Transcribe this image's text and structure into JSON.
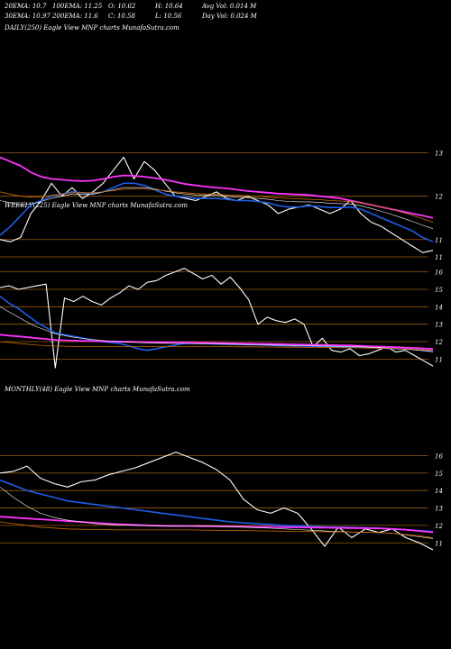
{
  "header": {
    "row1": [
      "20EMA: 10.7",
      "100EMA: 11.25",
      "O: 10.62",
      "H: 10.64",
      "Avg Vol: 0.014  M"
    ],
    "row2": [
      "30EMA: 10.97",
      "200EMA: 11.6",
      "C: 10.58",
      "L: 10.56",
      "Day Vol: 0.024  M"
    ]
  },
  "colors": {
    "background": "#000000",
    "price": "#ffffff",
    "ema20": "#1e5ee6",
    "ema_fast": "#ff33ff",
    "ema_mid": "#ffffff",
    "ema_orange": "#cc6a00",
    "gridline": "#9a5a12"
  },
  "panels": [
    {
      "label": "DAILY(250) Eagle  View  MNP charts MunafaSutra.com",
      "right_ticks": [],
      "chart_data": null
    },
    {
      "label": "WEEKLY(225) Eagle  View  MNP charts MunafaSutra.com",
      "chart_data": {
        "type": "line",
        "ylim": [
          10.6,
          13.2
        ],
        "right_ticks": [
          "13",
          "12",
          "11",
          "11"
        ],
        "tick_values": [
          13,
          12,
          11,
          10.6
        ],
        "series": [
          {
            "key": "price",
            "values": [
              11.0,
              10.95,
              11.05,
              11.6,
              11.9,
              12.3,
              12.0,
              12.2,
              11.95,
              12.1,
              12.3,
              12.6,
              12.9,
              12.4,
              12.8,
              12.6,
              12.3,
              12.0,
              11.95,
              11.9,
              12.0,
              12.1,
              11.95,
              11.9,
              12.0,
              11.9,
              11.8,
              11.6,
              11.7,
              11.75,
              11.8,
              11.7,
              11.6,
              11.7,
              11.9,
              11.6,
              11.4,
              11.3,
              11.15,
              11.0,
              10.85,
              10.7,
              10.75
            ]
          },
          {
            "key": "ema_fast",
            "values": [
              12.9,
              12.8,
              12.7,
              12.55,
              12.45,
              12.4,
              12.38,
              12.36,
              12.35,
              12.36,
              12.4,
              12.45,
              12.48,
              12.47,
              12.45,
              12.42,
              12.38,
              12.33,
              12.28,
              12.25,
              12.22,
              12.2,
              12.18,
              12.15,
              12.12,
              12.1,
              12.08,
              12.06,
              12.05,
              12.04,
              12.03,
              12.0,
              11.98,
              11.95,
              11.9,
              11.85,
              11.8,
              11.75,
              11.7,
              11.65,
              11.6,
              11.55,
              11.5
            ]
          },
          {
            "key": "ema20",
            "values": [
              11.1,
              11.3,
              11.55,
              11.8,
              11.9,
              12.0,
              12.05,
              12.1,
              12.08,
              12.05,
              12.1,
              12.2,
              12.3,
              12.3,
              12.25,
              12.15,
              12.05,
              12.0,
              11.98,
              11.95,
              11.95,
              11.95,
              11.93,
              11.9,
              11.9,
              11.88,
              11.85,
              11.78,
              11.75,
              11.75,
              11.78,
              11.76,
              11.74,
              11.74,
              11.75,
              11.7,
              11.6,
              11.5,
              11.4,
              11.3,
              11.2,
              11.05,
              10.95
            ]
          },
          {
            "key": "ema_mid",
            "values": [
              11.9,
              11.85,
              11.8,
              11.82,
              11.88,
              11.95,
              12.0,
              12.05,
              12.05,
              12.05,
              12.1,
              12.15,
              12.2,
              12.2,
              12.2,
              12.17,
              12.12,
              12.08,
              12.05,
              12.03,
              12.02,
              12.02,
              12.0,
              11.98,
              11.97,
              11.95,
              11.93,
              11.9,
              11.88,
              11.87,
              11.87,
              11.86,
              11.84,
              11.83,
              11.82,
              11.78,
              11.72,
              11.65,
              11.58,
              11.5,
              11.42,
              11.33,
              11.25
            ]
          },
          {
            "key": "ema_orange",
            "values": [
              12.1,
              12.05,
              12.0,
              11.98,
              11.99,
              12.02,
              12.05,
              12.08,
              12.08,
              12.08,
              12.1,
              12.13,
              12.16,
              12.17,
              12.17,
              12.15,
              12.13,
              12.1,
              12.08,
              12.06,
              12.05,
              12.05,
              12.03,
              12.02,
              12.01,
              12.0,
              11.98,
              11.96,
              11.95,
              11.94,
              11.93,
              11.92,
              11.9,
              11.89,
              11.88,
              11.85,
              11.8,
              11.75,
              11.7,
              11.63,
              11.56,
              11.48,
              11.4
            ]
          }
        ]
      }
    },
    {
      "label": "MONTHLY(48) Eagle  View  MNP charts MunafaSutra.com",
      "chart_data": {
        "type": "line",
        "ylim": [
          10.6,
          16.8
        ],
        "right_ticks": [
          "16",
          "15",
          "14",
          "13",
          "12",
          "11"
        ],
        "tick_values": [
          16,
          15,
          14,
          13,
          12,
          11
        ],
        "series": [
          {
            "key": "price",
            "values": [
              15.0,
              15.1,
              15.4,
              14.7,
              14.4,
              14.2,
              14.5,
              14.6,
              14.9,
              15.1,
              15.3,
              15.6,
              15.9,
              16.2,
              15.9,
              15.6,
              15.2,
              14.6,
              13.5,
              12.9,
              12.7,
              13.0,
              12.7,
              11.8,
              10.8,
              11.9,
              11.3,
              11.8,
              11.6,
              11.8,
              11.3,
              11.0,
              10.6
            ]
          },
          {
            "key": "ema20",
            "values": [
              14.6,
              14.3,
              14.0,
              13.8,
              13.6,
              13.4,
              13.3,
              13.2,
              13.1,
              13.0,
              12.9,
              12.8,
              12.7,
              12.6,
              12.5,
              12.4,
              12.3,
              12.2,
              12.15,
              12.1,
              12.05,
              12.0,
              11.98,
              11.95,
              11.92,
              11.9,
              11.88,
              11.86,
              11.84,
              11.8,
              11.75,
              11.7,
              11.65
            ]
          },
          {
            "key": "ema_fast",
            "values": [
              12.5,
              12.45,
              12.4,
              12.35,
              12.3,
              12.25,
              12.2,
              12.15,
              12.1,
              12.06,
              12.03,
              12.0,
              11.98,
              11.97,
              11.97,
              11.96,
              11.95,
              11.94,
              11.93,
              11.92,
              11.91,
              11.9,
              11.89,
              11.88,
              11.87,
              11.86,
              11.85,
              11.84,
              11.83,
              11.8,
              11.75,
              11.68,
              11.6
            ]
          },
          {
            "key": "ema_mid",
            "values": [
              14.2,
              13.6,
              13.1,
              12.7,
              12.45,
              12.3,
              12.2,
              12.1,
              12.05,
              12.02,
              12.0,
              11.99,
              11.98,
              11.98,
              11.97,
              11.96,
              11.95,
              11.93,
              11.9,
              11.87,
              11.84,
              11.8,
              11.76,
              11.72,
              11.68,
              11.65,
              11.62,
              11.6,
              11.58,
              11.55,
              11.45,
              11.35,
              11.25
            ]
          },
          {
            "key": "ema_orange",
            "values": [
              12.2,
              12.1,
              12.0,
              11.9,
              11.85,
              11.8,
              11.78,
              11.76,
              11.75,
              11.74,
              11.74,
              11.74,
              11.74,
              11.74,
              11.74,
              11.73,
              11.72,
              11.71,
              11.7,
              11.69,
              11.68,
              11.67,
              11.66,
              11.65,
              11.64,
              11.63,
              11.62,
              11.61,
              11.6,
              11.55,
              11.48,
              11.4,
              11.3
            ]
          }
        ]
      }
    }
  ],
  "daily_chart_data": {
    "type": "line",
    "ylim": [
      10.4,
      16.6
    ],
    "right_ticks": [
      "16",
      "15",
      "14",
      "13",
      "12",
      "11"
    ],
    "tick_values": [
      16,
      15,
      14,
      13,
      12,
      11
    ],
    "series": [
      {
        "key": "price",
        "values": [
          15.1,
          15.2,
          15.0,
          15.1,
          15.2,
          15.3,
          10.5,
          14.5,
          14.3,
          14.6,
          14.3,
          14.1,
          14.5,
          14.8,
          15.2,
          15.0,
          15.4,
          15.5,
          15.8,
          16.0,
          16.2,
          15.9,
          15.6,
          15.8,
          15.3,
          15.7,
          15.1,
          14.4,
          13.0,
          13.4,
          13.2,
          13.1,
          13.3,
          13.0,
          11.7,
          12.2,
          11.5,
          11.4,
          11.6,
          11.2,
          11.3,
          11.5,
          11.7,
          11.4,
          11.5,
          11.2,
          10.9,
          10.6
        ]
      },
      {
        "key": "ema20",
        "values": [
          14.6,
          14.2,
          13.9,
          13.5,
          13.1,
          12.8,
          12.5,
          12.4,
          12.3,
          12.2,
          12.1,
          12.0,
          11.95,
          11.9,
          11.75,
          11.6,
          11.5,
          11.6,
          11.7,
          11.8,
          11.9,
          11.92,
          11.9,
          11.88,
          11.86,
          11.85,
          11.84,
          11.83,
          11.82,
          11.8,
          11.78,
          11.77,
          11.76,
          11.75,
          11.74,
          11.73,
          11.72,
          11.71,
          11.7,
          11.68,
          11.66,
          11.64,
          11.62,
          11.6,
          11.58,
          11.55,
          11.5,
          11.45
        ]
      },
      {
        "key": "ema_fast",
        "values": [
          12.4,
          12.35,
          12.3,
          12.25,
          12.2,
          12.15,
          12.1,
          12.08,
          12.06,
          12.05,
          12.03,
          12.02,
          12.01,
          12.0,
          11.99,
          11.98,
          11.98,
          11.97,
          11.97,
          11.96,
          11.96,
          11.95,
          11.94,
          11.93,
          11.92,
          11.91,
          11.9,
          11.89,
          11.88,
          11.87,
          11.86,
          11.85,
          11.84,
          11.83,
          11.82,
          11.81,
          11.8,
          11.79,
          11.78,
          11.76,
          11.74,
          11.72,
          11.7,
          11.68,
          11.66,
          11.64,
          11.61,
          11.58
        ]
      },
      {
        "key": "ema_mid",
        "values": [
          14.0,
          13.7,
          13.4,
          13.1,
          12.85,
          12.65,
          12.45,
          12.35,
          12.25,
          12.18,
          12.12,
          12.07,
          12.03,
          12.0,
          11.97,
          11.95,
          11.93,
          11.92,
          11.91,
          11.9,
          11.9,
          11.89,
          11.88,
          11.87,
          11.86,
          11.85,
          11.84,
          11.83,
          11.82,
          11.81,
          11.8,
          11.79,
          11.78,
          11.77,
          11.76,
          11.75,
          11.74,
          11.73,
          11.72,
          11.7,
          11.68,
          11.66,
          11.63,
          11.6,
          11.57,
          11.53,
          11.48,
          11.42
        ]
      },
      {
        "key": "ema_orange",
        "values": [
          12.0,
          11.95,
          11.9,
          11.85,
          11.8,
          11.77,
          11.75,
          11.74,
          11.73,
          11.72,
          11.72,
          11.72,
          11.72,
          11.72,
          11.72,
          11.72,
          11.72,
          11.72,
          11.72,
          11.72,
          11.72,
          11.72,
          11.72,
          11.71,
          11.71,
          11.71,
          11.7,
          11.7,
          11.7,
          11.69,
          11.69,
          11.68,
          11.68,
          11.67,
          11.67,
          11.66,
          11.66,
          11.65,
          11.65,
          11.64,
          11.63,
          11.62,
          11.61,
          11.6,
          11.58,
          11.56,
          11.53,
          11.5
        ]
      }
    ]
  }
}
